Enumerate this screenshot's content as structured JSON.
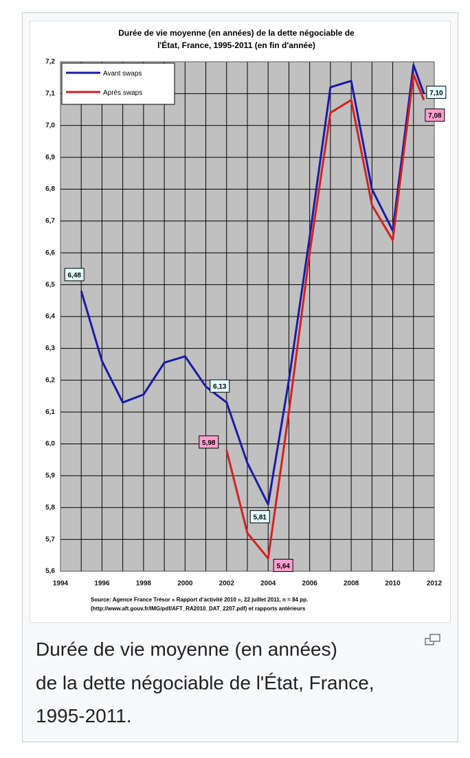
{
  "chart_data": {
    "type": "line",
    "title": [
      "Durée de vie moyenne (en années) de la dette négociable de",
      "l'État, France, 1995-2011 (en fin d'année)"
    ],
    "source": [
      "Source: Agence France Trésor « Rapport d'activité 2010 », 22 juillet 2011, n = 84 pp.",
      "(http://www.aft.gouv.fr/IMG/pdf/AFT_RA2010_DAT_2207.pdf) et rapports antérieurs"
    ],
    "x": [
      1995,
      1996,
      1997,
      1998,
      1999,
      2000,
      2001,
      2002,
      2003,
      2004,
      2005,
      2006,
      2007,
      2008,
      2009,
      2010,
      2011,
      2011.5
    ],
    "series": [
      {
        "name": "Avant swaps",
        "color": "#1a1aa8",
        "values": [
          6.48,
          6.26,
          6.13,
          6.155,
          6.255,
          6.275,
          6.18,
          6.13,
          5.94,
          5.81,
          6.2,
          6.65,
          7.12,
          7.14,
          6.8,
          6.67,
          7.19,
          7.1
        ],
        "value_labels": [
          "6,48",
          null,
          null,
          null,
          null,
          null,
          null,
          "6,13",
          null,
          "5,81",
          null,
          null,
          null,
          null,
          null,
          null,
          null,
          "7,10"
        ]
      },
      {
        "name": "Après swaps",
        "color": "#d42020",
        "values": [
          null,
          null,
          null,
          null,
          null,
          null,
          null,
          5.98,
          5.72,
          5.64,
          6.1,
          6.6,
          7.04,
          7.08,
          6.75,
          6.64,
          7.16,
          7.08
        ],
        "value_labels": [
          null,
          null,
          null,
          null,
          null,
          null,
          null,
          "5,98",
          null,
          "5,64",
          null,
          null,
          null,
          null,
          null,
          null,
          null,
          "7,08"
        ]
      }
    ],
    "xlim": [
      1994,
      2012
    ],
    "xticks": [
      1994,
      1996,
      1998,
      2000,
      2002,
      2004,
      2006,
      2008,
      2010,
      2012
    ],
    "ylim": [
      5.6,
      7.2
    ],
    "yticks": [
      {
        "value": 5.6,
        "label": "5,6"
      },
      {
        "value": 5.7,
        "label": "5,7"
      },
      {
        "value": 5.8,
        "label": "5,8"
      },
      {
        "value": 5.9,
        "label": "5,9"
      },
      {
        "value": 6.0,
        "label": "6,0"
      },
      {
        "value": 6.1,
        "label": "6,1"
      },
      {
        "value": 6.2,
        "label": "6,2"
      },
      {
        "value": 6.3,
        "label": "6,3"
      },
      {
        "value": 6.4,
        "label": "6,4"
      },
      {
        "value": 6.5,
        "label": "6,5"
      },
      {
        "value": 6.6,
        "label": "6,6"
      },
      {
        "value": 6.7,
        "label": "6,7"
      },
      {
        "value": 6.8,
        "label": "6,8"
      },
      {
        "value": 6.9,
        "label": "6,9"
      },
      {
        "value": 7.0,
        "label": "7,0"
      },
      {
        "value": 7.1,
        "label": "7,1"
      },
      {
        "value": 7.2,
        "label": "7,2"
      }
    ],
    "grid": true,
    "legend": "upper left",
    "background": "#c0c0c0"
  },
  "caption": [
    "Durée de vie moyenne (en années)",
    "de la dette négociable de l'État, France,",
    "1995-2011."
  ]
}
